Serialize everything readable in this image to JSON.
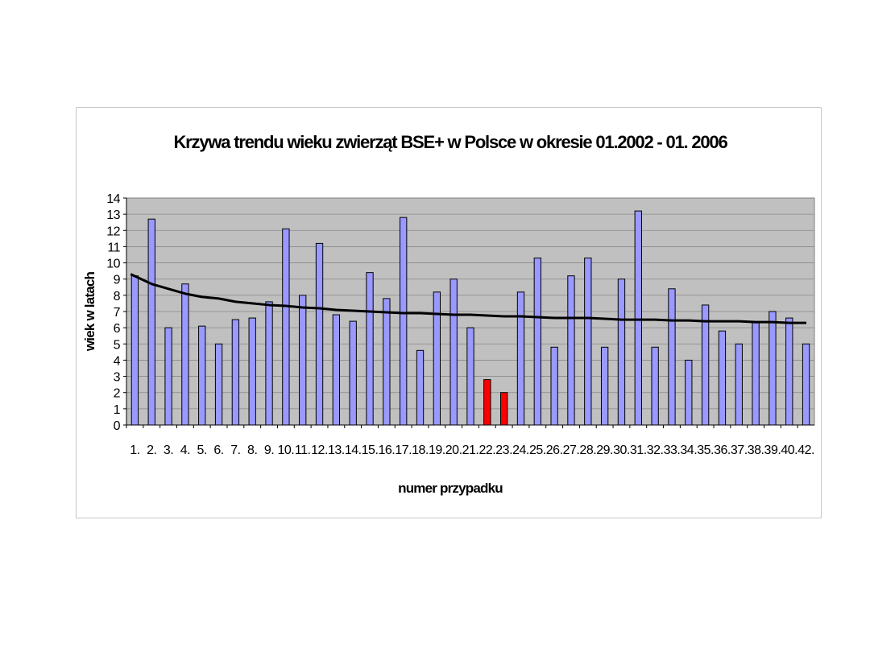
{
  "chart_data": {
    "type": "bar",
    "title": "Krzywa trendu wieku zwierząt BSE+ w Polsce w okresie 01.2002 - 01. 2006",
    "xlabel": "numer przypadku",
    "ylabel": "wiek w latach",
    "ylim": [
      0,
      14
    ],
    "yticks": [
      "0",
      "1",
      "2",
      "3",
      "4",
      "5",
      "6",
      "7",
      "8",
      "9",
      "10",
      "11",
      "12",
      "13",
      "14"
    ],
    "grid": true,
    "categories": [
      "1.",
      "2.",
      "3.",
      "4.",
      "5.",
      "6.",
      "7.",
      "8.",
      "9.",
      "10.",
      "11.",
      "12.",
      "13.",
      "14.",
      "15.",
      "16.",
      "17.",
      "18.",
      "19.",
      "20.",
      "21.",
      "22.",
      "23.",
      "24.",
      "25.",
      "26.",
      "27.",
      "28.",
      "29.",
      "30.",
      "31.",
      "32.",
      "33.",
      "34.",
      "35.",
      "36.",
      "37.",
      "38.",
      "39.",
      "40.",
      "42."
    ],
    "series": [
      {
        "values": [
          9.2,
          12.7,
          6.0,
          8.7,
          6.1,
          5.0,
          6.5,
          6.6,
          7.6,
          12.1,
          8.0,
          11.2,
          6.8,
          6.4,
          9.4,
          7.8,
          12.8,
          4.6,
          8.2,
          9.0,
          6.0,
          2.8,
          2.0,
          8.2,
          10.3,
          4.8,
          9.2,
          10.3,
          4.8,
          9.0,
          13.2,
          4.8,
          8.4,
          4.0,
          7.4,
          5.8,
          5.0,
          6.3,
          7.0,
          6.6,
          5.0
        ],
        "colors": {
          "default": "#9999ff",
          "highlight": "#ff0000"
        },
        "highlighted_categories": [
          "22.",
          "23."
        ]
      }
    ],
    "trendline": {
      "type": "logarithmic",
      "color": "#000000",
      "values": [
        9.3,
        8.7,
        8.4,
        8.1,
        7.9,
        7.8,
        7.6,
        7.5,
        7.4,
        7.35,
        7.25,
        7.2,
        7.1,
        7.05,
        7.0,
        6.95,
        6.9,
        6.9,
        6.85,
        6.8,
        6.8,
        6.75,
        6.7,
        6.7,
        6.65,
        6.6,
        6.6,
        6.6,
        6.55,
        6.5,
        6.5,
        6.5,
        6.45,
        6.45,
        6.4,
        6.4,
        6.4,
        6.35,
        6.35,
        6.3,
        6.3
      ]
    },
    "colors": {
      "plot_background": "#c0c0c0",
      "gridline": "#888888"
    }
  }
}
